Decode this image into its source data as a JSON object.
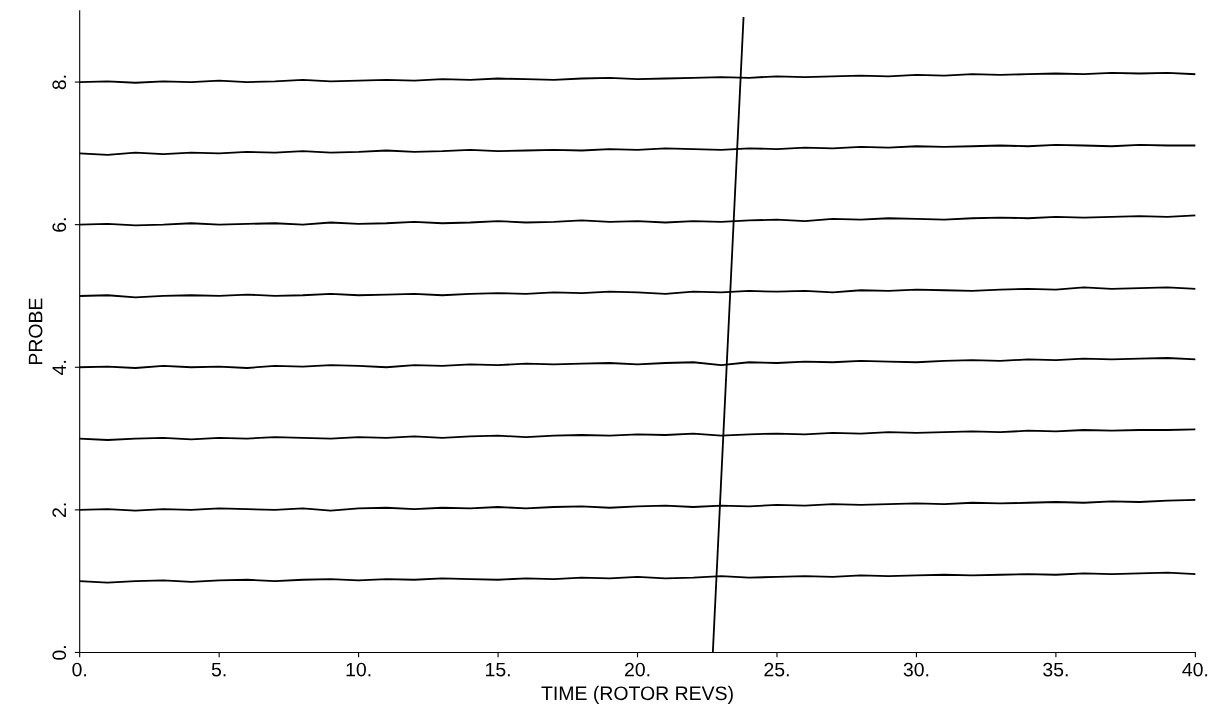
{
  "chart_data": {
    "type": "line",
    "xlabel": "TIME (ROTOR REVS)",
    "ylabel": "PROBE",
    "x": [
      0,
      1,
      2,
      3,
      4,
      5,
      6,
      7,
      8,
      9,
      10,
      11,
      12,
      13,
      14,
      15,
      16,
      17,
      18,
      19,
      20,
      21,
      22,
      23,
      24,
      25,
      26,
      27,
      28,
      29,
      30,
      31,
      32,
      33,
      34,
      35,
      36,
      37,
      38,
      39,
      40
    ],
    "xlim": [
      0,
      40
    ],
    "xticks": [
      {
        "value": 0,
        "label": "0."
      },
      {
        "value": 5,
        "label": "5."
      },
      {
        "value": 10,
        "label": "10."
      },
      {
        "value": 15,
        "label": "15."
      },
      {
        "value": 20,
        "label": "20."
      },
      {
        "value": 25,
        "label": "25."
      },
      {
        "value": 30,
        "label": "30."
      },
      {
        "value": 35,
        "label": "35."
      },
      {
        "value": 40,
        "label": "40."
      }
    ],
    "ylim": [
      0,
      9
    ],
    "yticks": [
      {
        "value": 0,
        "label": "0."
      },
      {
        "value": 2,
        "label": "2."
      },
      {
        "value": 4,
        "label": "4."
      },
      {
        "value": 6,
        "label": "6."
      },
      {
        "value": 8,
        "label": "8."
      }
    ],
    "grid": false,
    "marker": "none",
    "line_style": "solid",
    "series": [
      {
        "color": "#000000",
        "values": [
          1.0,
          0.98,
          1.0,
          1.01,
          0.99,
          1.01,
          1.02,
          1.0,
          1.02,
          1.03,
          1.01,
          1.03,
          1.02,
          1.04,
          1.03,
          1.02,
          1.04,
          1.03,
          1.05,
          1.04,
          1.06,
          1.04,
          1.05,
          1.07,
          1.05,
          1.06,
          1.07,
          1.06,
          1.08,
          1.07,
          1.08,
          1.09,
          1.08,
          1.09,
          1.1,
          1.09,
          1.11,
          1.1,
          1.11,
          1.12,
          1.1
        ]
      },
      {
        "color": "#000000",
        "values": [
          2.0,
          2.01,
          1.99,
          2.01,
          2.0,
          2.02,
          2.01,
          2.0,
          2.02,
          1.99,
          2.02,
          2.03,
          2.01,
          2.03,
          2.02,
          2.04,
          2.02,
          2.04,
          2.05,
          2.03,
          2.05,
          2.06,
          2.04,
          2.06,
          2.05,
          2.07,
          2.06,
          2.08,
          2.07,
          2.08,
          2.09,
          2.08,
          2.1,
          2.09,
          2.1,
          2.11,
          2.1,
          2.12,
          2.11,
          2.13,
          2.14
        ]
      },
      {
        "color": "#000000",
        "values": [
          3.0,
          2.98,
          3.0,
          3.01,
          2.99,
          3.01,
          3.0,
          3.02,
          3.01,
          3.0,
          3.02,
          3.01,
          3.03,
          3.01,
          3.03,
          3.04,
          3.02,
          3.04,
          3.05,
          3.04,
          3.06,
          3.05,
          3.07,
          3.04,
          3.06,
          3.07,
          3.06,
          3.08,
          3.07,
          3.09,
          3.08,
          3.09,
          3.1,
          3.09,
          3.11,
          3.1,
          3.12,
          3.11,
          3.12,
          3.12,
          3.13
        ]
      },
      {
        "color": "#000000",
        "values": [
          4.0,
          4.01,
          3.99,
          4.02,
          4.0,
          4.01,
          3.99,
          4.02,
          4.01,
          4.03,
          4.02,
          4.0,
          4.03,
          4.02,
          4.04,
          4.03,
          4.05,
          4.04,
          4.05,
          4.06,
          4.04,
          4.06,
          4.07,
          4.03,
          4.07,
          4.06,
          4.08,
          4.07,
          4.09,
          4.08,
          4.07,
          4.09,
          4.1,
          4.09,
          4.11,
          4.1,
          4.12,
          4.11,
          4.12,
          4.13,
          4.11
        ]
      },
      {
        "color": "#000000",
        "values": [
          5.0,
          5.01,
          4.98,
          5.0,
          5.01,
          5.0,
          5.02,
          5.0,
          5.01,
          5.03,
          5.01,
          5.02,
          5.03,
          5.01,
          5.03,
          5.04,
          5.03,
          5.05,
          5.04,
          5.06,
          5.05,
          5.03,
          5.06,
          5.05,
          5.07,
          5.06,
          5.07,
          5.05,
          5.08,
          5.07,
          5.09,
          5.08,
          5.07,
          5.09,
          5.1,
          5.09,
          5.12,
          5.1,
          5.11,
          5.12,
          5.1
        ]
      },
      {
        "color": "#000000",
        "values": [
          6.0,
          6.01,
          5.99,
          6.0,
          6.02,
          6.0,
          6.01,
          6.02,
          6.0,
          6.03,
          6.01,
          6.02,
          6.04,
          6.02,
          6.03,
          6.05,
          6.03,
          6.04,
          6.06,
          6.04,
          6.05,
          6.03,
          6.05,
          6.04,
          6.06,
          6.07,
          6.05,
          6.08,
          6.07,
          6.09,
          6.08,
          6.07,
          6.09,
          6.1,
          6.09,
          6.11,
          6.1,
          6.11,
          6.12,
          6.11,
          6.13
        ]
      },
      {
        "color": "#000000",
        "values": [
          7.0,
          6.98,
          7.01,
          6.99,
          7.01,
          7.0,
          7.02,
          7.01,
          7.03,
          7.01,
          7.02,
          7.04,
          7.02,
          7.03,
          7.05,
          7.03,
          7.04,
          7.05,
          7.04,
          7.06,
          7.05,
          7.07,
          7.06,
          7.05,
          7.07,
          7.06,
          7.08,
          7.07,
          7.09,
          7.08,
          7.1,
          7.09,
          7.1,
          7.11,
          7.1,
          7.12,
          7.11,
          7.1,
          7.12,
          7.11,
          7.11
        ]
      },
      {
        "color": "#000000",
        "values": [
          8.0,
          8.01,
          7.99,
          8.01,
          8.0,
          8.02,
          8.0,
          8.01,
          8.03,
          8.01,
          8.02,
          8.03,
          8.02,
          8.04,
          8.03,
          8.05,
          8.04,
          8.03,
          8.05,
          8.06,
          8.04,
          8.05,
          8.06,
          8.07,
          8.06,
          8.08,
          8.07,
          8.08,
          8.09,
          8.08,
          8.1,
          8.09,
          8.11,
          8.1,
          8.11,
          8.12,
          8.11,
          8.13,
          8.12,
          8.13,
          8.11
        ]
      },
      {
        "color": "#000000",
        "x": [
          22.7,
          23.8
        ],
        "values": [
          0,
          8.9
        ]
      }
    ]
  }
}
